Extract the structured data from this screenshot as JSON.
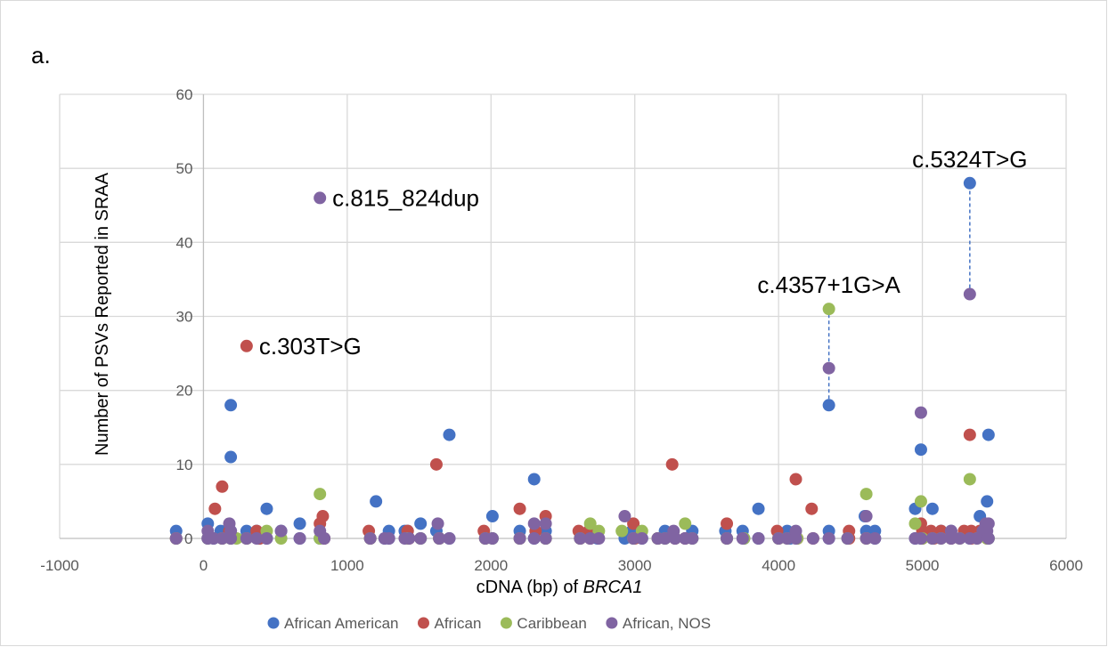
{
  "panel_label": "a.",
  "chart_data": {
    "type": "scatter",
    "title": "",
    "xlabel_prefix": "cDNA (bp) of ",
    "xlabel_italic": "BRCA1",
    "ylabel": "Number of PSVs Reported in SRAA",
    "xlim": [
      -1000,
      6000
    ],
    "ylim": [
      0,
      60
    ],
    "xticks": [
      -1000,
      0,
      1000,
      2000,
      3000,
      4000,
      5000,
      6000
    ],
    "yticks": [
      0,
      10,
      20,
      30,
      40,
      50,
      60
    ],
    "grid": true,
    "legend_position": "bottom",
    "series": [
      {
        "name": "African American",
        "color": "#4472c4",
        "points": [
          [
            -190,
            1
          ],
          [
            -190,
            0
          ],
          [
            30,
            2
          ],
          [
            30,
            0
          ],
          [
            70,
            0
          ],
          [
            120,
            1
          ],
          [
            130,
            0
          ],
          [
            190,
            18
          ],
          [
            190,
            11
          ],
          [
            190,
            1
          ],
          [
            190,
            0
          ],
          [
            300,
            1
          ],
          [
            300,
            0
          ],
          [
            370,
            1
          ],
          [
            390,
            0
          ],
          [
            440,
            4
          ],
          [
            440,
            0
          ],
          [
            540,
            1
          ],
          [
            670,
            2
          ],
          [
            670,
            0
          ],
          [
            810,
            0
          ],
          [
            840,
            0
          ],
          [
            1160,
            0
          ],
          [
            1200,
            5
          ],
          [
            1260,
            0
          ],
          [
            1290,
            1
          ],
          [
            1290,
            0
          ],
          [
            1400,
            1
          ],
          [
            1420,
            1
          ],
          [
            1510,
            2
          ],
          [
            1510,
            0
          ],
          [
            1620,
            1
          ],
          [
            1640,
            0
          ],
          [
            1710,
            14
          ],
          [
            1710,
            0
          ],
          [
            1960,
            0
          ],
          [
            2010,
            3
          ],
          [
            2010,
            0
          ],
          [
            2200,
            1
          ],
          [
            2200,
            0
          ],
          [
            2300,
            8
          ],
          [
            2300,
            0
          ],
          [
            2380,
            1
          ],
          [
            2380,
            0
          ],
          [
            2620,
            0
          ],
          [
            2690,
            0
          ],
          [
            2740,
            0
          ],
          [
            2930,
            0
          ],
          [
            2980,
            1
          ],
          [
            2990,
            0
          ],
          [
            3050,
            0
          ],
          [
            3160,
            0
          ],
          [
            3210,
            1
          ],
          [
            3210,
            0
          ],
          [
            3280,
            0
          ],
          [
            3350,
            0
          ],
          [
            3400,
            1
          ],
          [
            3400,
            0
          ],
          [
            3630,
            1
          ],
          [
            3640,
            0
          ],
          [
            3750,
            1
          ],
          [
            3760,
            0
          ],
          [
            3860,
            4
          ],
          [
            3860,
            0
          ],
          [
            4000,
            0
          ],
          [
            4060,
            1
          ],
          [
            4080,
            0
          ],
          [
            4350,
            18
          ],
          [
            4350,
            1
          ],
          [
            4350,
            0
          ],
          [
            4480,
            0
          ],
          [
            4600,
            3
          ],
          [
            4610,
            1
          ],
          [
            4670,
            1
          ],
          [
            4670,
            0
          ],
          [
            4950,
            4
          ],
          [
            4950,
            0
          ],
          [
            4990,
            12
          ],
          [
            4990,
            0
          ],
          [
            5070,
            4
          ],
          [
            5070,
            0
          ],
          [
            5130,
            1
          ],
          [
            5200,
            1
          ],
          [
            5200,
            0
          ],
          [
            5330,
            48
          ],
          [
            5330,
            0
          ],
          [
            5400,
            3
          ],
          [
            5450,
            5
          ],
          [
            5460,
            14
          ],
          [
            5460,
            0
          ]
        ]
      },
      {
        "name": "African",
        "color": "#c0504d",
        "points": [
          [
            -190,
            0
          ],
          [
            80,
            4
          ],
          [
            130,
            7
          ],
          [
            130,
            0
          ],
          [
            180,
            1
          ],
          [
            300,
            26
          ],
          [
            300,
            0
          ],
          [
            370,
            1
          ],
          [
            390,
            0
          ],
          [
            810,
            2
          ],
          [
            830,
            3
          ],
          [
            840,
            0
          ],
          [
            1150,
            1
          ],
          [
            1160,
            0
          ],
          [
            1420,
            1
          ],
          [
            1430,
            0
          ],
          [
            1620,
            10
          ],
          [
            1640,
            0
          ],
          [
            1950,
            1
          ],
          [
            1960,
            0
          ],
          [
            2200,
            4
          ],
          [
            2200,
            0
          ],
          [
            2310,
            1
          ],
          [
            2380,
            3
          ],
          [
            2380,
            0
          ],
          [
            2610,
            1
          ],
          [
            2620,
            0
          ],
          [
            2680,
            1
          ],
          [
            2690,
            0
          ],
          [
            2990,
            2
          ],
          [
            3000,
            0
          ],
          [
            3160,
            0
          ],
          [
            3260,
            10
          ],
          [
            3280,
            0
          ],
          [
            3350,
            0
          ],
          [
            3640,
            2
          ],
          [
            3640,
            0
          ],
          [
            3990,
            1
          ],
          [
            4000,
            0
          ],
          [
            4120,
            8
          ],
          [
            4130,
            0
          ],
          [
            4230,
            4
          ],
          [
            4240,
            0
          ],
          [
            4490,
            1
          ],
          [
            4490,
            0
          ],
          [
            4610,
            0
          ],
          [
            4990,
            2
          ],
          [
            5000,
            1
          ],
          [
            5000,
            0
          ],
          [
            5060,
            1
          ],
          [
            5080,
            0
          ],
          [
            5130,
            1
          ],
          [
            5200,
            0
          ],
          [
            5290,
            1
          ],
          [
            5330,
            14
          ],
          [
            5340,
            1
          ],
          [
            5340,
            0
          ],
          [
            5400,
            1
          ],
          [
            5450,
            0
          ]
        ]
      },
      {
        "name": "Caribbean",
        "color": "#9bbb59",
        "points": [
          [
            -190,
            0
          ],
          [
            30,
            0
          ],
          [
            130,
            0
          ],
          [
            190,
            0
          ],
          [
            230,
            0
          ],
          [
            300,
            0
          ],
          [
            440,
            1
          ],
          [
            540,
            0
          ],
          [
            810,
            6
          ],
          [
            810,
            0
          ],
          [
            1160,
            0
          ],
          [
            1420,
            0
          ],
          [
            1510,
            0
          ],
          [
            1640,
            0
          ],
          [
            1960,
            0
          ],
          [
            2010,
            0
          ],
          [
            2200,
            0
          ],
          [
            2380,
            0
          ],
          [
            2620,
            0
          ],
          [
            2690,
            2
          ],
          [
            2750,
            1
          ],
          [
            2910,
            1
          ],
          [
            2990,
            0
          ],
          [
            3050,
            1
          ],
          [
            3160,
            0
          ],
          [
            3210,
            0
          ],
          [
            3350,
            2
          ],
          [
            3400,
            0
          ],
          [
            3640,
            0
          ],
          [
            3760,
            0
          ],
          [
            4000,
            0
          ],
          [
            4060,
            0
          ],
          [
            4130,
            0
          ],
          [
            4350,
            31
          ],
          [
            4480,
            0
          ],
          [
            4610,
            6
          ],
          [
            4610,
            0
          ],
          [
            4950,
            2
          ],
          [
            4990,
            5
          ],
          [
            5000,
            0
          ],
          [
            5070,
            0
          ],
          [
            5130,
            0
          ],
          [
            5260,
            0
          ],
          [
            5330,
            8
          ],
          [
            5380,
            0
          ],
          [
            5450,
            0
          ],
          [
            5460,
            0
          ]
        ]
      },
      {
        "name": "African, NOS",
        "color": "#8064a2",
        "points": [
          [
            -190,
            0
          ],
          [
            30,
            1
          ],
          [
            30,
            0
          ],
          [
            70,
            0
          ],
          [
            130,
            0
          ],
          [
            180,
            2
          ],
          [
            190,
            1
          ],
          [
            190,
            0
          ],
          [
            300,
            0
          ],
          [
            370,
            0
          ],
          [
            440,
            0
          ],
          [
            540,
            1
          ],
          [
            670,
            0
          ],
          [
            810,
            46
          ],
          [
            810,
            1
          ],
          [
            840,
            0
          ],
          [
            1160,
            0
          ],
          [
            1260,
            0
          ],
          [
            1290,
            0
          ],
          [
            1400,
            0
          ],
          [
            1430,
            0
          ],
          [
            1510,
            0
          ],
          [
            1630,
            2
          ],
          [
            1640,
            0
          ],
          [
            1710,
            0
          ],
          [
            1960,
            0
          ],
          [
            2010,
            0
          ],
          [
            2200,
            0
          ],
          [
            2300,
            2
          ],
          [
            2300,
            0
          ],
          [
            2380,
            2
          ],
          [
            2380,
            0
          ],
          [
            2620,
            0
          ],
          [
            2690,
            0
          ],
          [
            2750,
            0
          ],
          [
            2930,
            3
          ],
          [
            2990,
            0
          ],
          [
            3050,
            0
          ],
          [
            3160,
            0
          ],
          [
            3210,
            0
          ],
          [
            3270,
            1
          ],
          [
            3280,
            0
          ],
          [
            3350,
            0
          ],
          [
            3400,
            0
          ],
          [
            3640,
            0
          ],
          [
            3750,
            0
          ],
          [
            3860,
            0
          ],
          [
            4000,
            0
          ],
          [
            4060,
            0
          ],
          [
            4120,
            1
          ],
          [
            4120,
            0
          ],
          [
            4240,
            0
          ],
          [
            4350,
            23
          ],
          [
            4350,
            0
          ],
          [
            4480,
            0
          ],
          [
            4610,
            3
          ],
          [
            4610,
            0
          ],
          [
            4670,
            0
          ],
          [
            4950,
            0
          ],
          [
            4990,
            17
          ],
          [
            4990,
            0
          ],
          [
            5070,
            0
          ],
          [
            5130,
            0
          ],
          [
            5200,
            1
          ],
          [
            5200,
            0
          ],
          [
            5260,
            0
          ],
          [
            5330,
            33
          ],
          [
            5330,
            0
          ],
          [
            5380,
            0
          ],
          [
            5420,
            1
          ],
          [
            5440,
            2
          ],
          [
            5450,
            1
          ],
          [
            5460,
            2
          ],
          [
            5460,
            0
          ]
        ]
      }
    ],
    "connectors": [
      {
        "x": 4350,
        "y1": 18,
        "y2": 31
      },
      {
        "x": 5330,
        "y1": 33,
        "y2": 48
      }
    ],
    "annotations": [
      {
        "text": "c.815_824dup",
        "x": 810,
        "y": 46,
        "anchor": "right-of-point"
      },
      {
        "text": "c.303T>G",
        "x": 300,
        "y": 26,
        "anchor": "right-of-point"
      },
      {
        "text": "c.4357+1G>A",
        "x": 4350,
        "y": 31,
        "anchor": "above-point"
      },
      {
        "text": "c.5324T>G",
        "x": 5330,
        "y": 48,
        "anchor": "above-point"
      }
    ]
  }
}
